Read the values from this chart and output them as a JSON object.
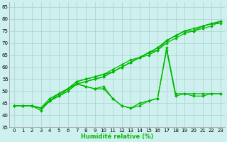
{
  "xlabel": "Humidité relative (%)",
  "xlim": [
    -0.5,
    23.5
  ],
  "ylim": [
    35,
    87
  ],
  "yticks": [
    35,
    40,
    45,
    50,
    55,
    60,
    65,
    70,
    75,
    80,
    85
  ],
  "xticks": [
    0,
    1,
    2,
    3,
    4,
    5,
    6,
    7,
    8,
    9,
    10,
    11,
    12,
    13,
    14,
    15,
    16,
    17,
    18,
    19,
    20,
    21,
    22,
    23
  ],
  "background_color": "#cef0ee",
  "grid_color": "#aacfcc",
  "line_color": "#00bb00",
  "markersize": 2.0,
  "linewidth": 0.9,
  "curves": [
    [
      44,
      44,
      44,
      42,
      46,
      48,
      50,
      53,
      54,
      55,
      56,
      58,
      60,
      62,
      64,
      66,
      68,
      71,
      73,
      75,
      76,
      77,
      78,
      79
    ],
    [
      44,
      44,
      44,
      43,
      46,
      48,
      50,
      53,
      54,
      55,
      56,
      58,
      60,
      62,
      64,
      66,
      68,
      71,
      73,
      75,
      75,
      77,
      78,
      78
    ],
    [
      44,
      44,
      44,
      43,
      46,
      48,
      51,
      54,
      55,
      56,
      57,
      59,
      61,
      63,
      64,
      66,
      67,
      70,
      72,
      74,
      75,
      76,
      77,
      79
    ],
    [
      44,
      44,
      44,
      43,
      47,
      49,
      51,
      54,
      55,
      56,
      57,
      58,
      60,
      62,
      64,
      65,
      67,
      71,
      73,
      75,
      75,
      77,
      78,
      79
    ],
    [
      44,
      44,
      44,
      43,
      46,
      49,
      51,
      53,
      52,
      51,
      52,
      47,
      44,
      43,
      45,
      46,
      47,
      68,
      49,
      49,
      49,
      49,
      49,
      49
    ],
    [
      44,
      44,
      44,
      43,
      46,
      49,
      51,
      53,
      52,
      51,
      51,
      47,
      44,
      43,
      44,
      46,
      47,
      67,
      48,
      49,
      48,
      48,
      49,
      49
    ]
  ]
}
